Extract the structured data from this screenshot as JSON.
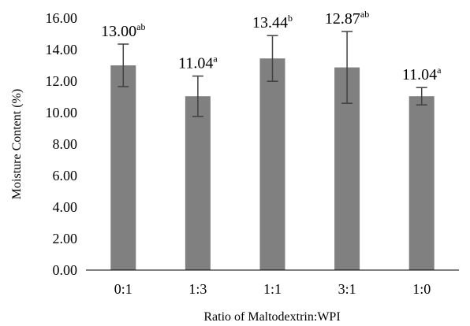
{
  "chart_data": {
    "type": "bar",
    "title": "",
    "xlabel": "Ratio of Maltodextrin:WPI",
    "ylabel": "Moisture Content (%)",
    "ylim": [
      0,
      16
    ],
    "yticks": [
      "0.00",
      "2.00",
      "4.00",
      "6.00",
      "8.00",
      "10.00",
      "12.00",
      "14.00",
      "16.00"
    ],
    "categories": [
      "0:1",
      "1:3",
      "1:1",
      "3:1",
      "1:0"
    ],
    "values": [
      13.0,
      11.04,
      13.44,
      12.87,
      11.04
    ],
    "error": [
      1.35,
      1.28,
      1.45,
      2.28,
      0.55
    ],
    "labels": [
      {
        "value": "13.00",
        "sup": "ab"
      },
      {
        "value": "11.04",
        "sup": "a"
      },
      {
        "value": "13.44",
        "sup": "b"
      },
      {
        "value": "12.87",
        "sup": "ab"
      },
      {
        "value": "11.04",
        "sup": "a"
      }
    ],
    "bar_color": "#808080",
    "error_color": "#404040",
    "grid": false,
    "legend": "none"
  }
}
